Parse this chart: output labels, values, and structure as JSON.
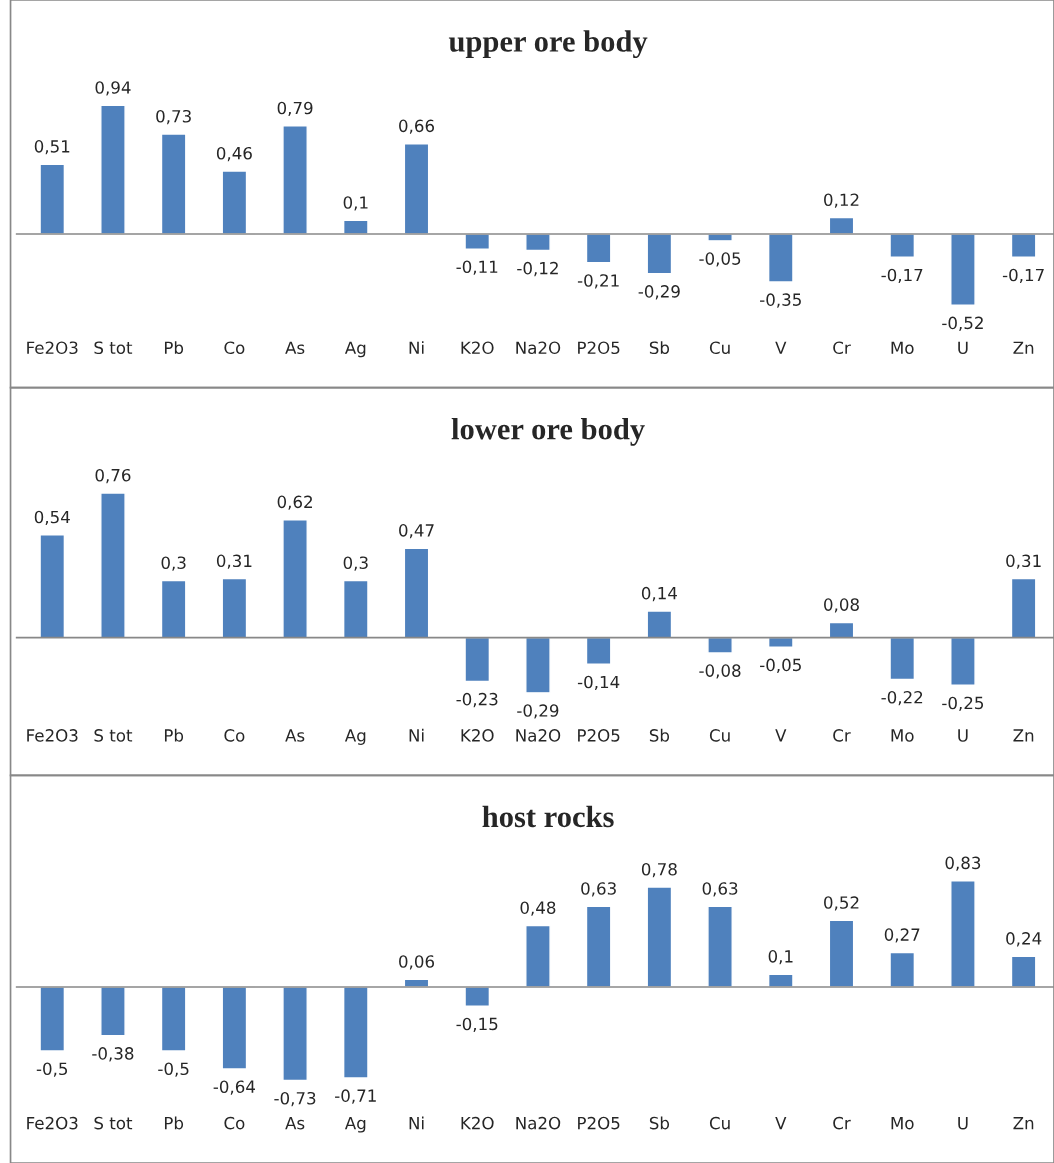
{
  "chart_data": [
    {
      "type": "bar",
      "title": "upper ore body",
      "categories": [
        "Fe2O3",
        "S tot",
        "Pb",
        "Co",
        "As",
        "Ag",
        "Ni",
        "K2O",
        "Na2O",
        "P2O5",
        "Sb",
        "Cu",
        "V",
        "Cr",
        "Mo",
        "U",
        "Zn"
      ],
      "series": [
        {
          "color": "#4f81bd",
          "values": [
            0.51,
            0.94,
            0.73,
            0.46,
            0.79,
            0.1,
            0.66,
            -0.11,
            -0.12,
            -0.21,
            -0.29,
            -0.05,
            -0.35,
            0.12,
            -0.17,
            -0.52,
            -0.17
          ],
          "value_labels": [
            "0,51",
            "0,94",
            "0,73",
            "0,46",
            "0,79",
            "0,1",
            "0,66",
            "-0,11",
            "-0,12",
            "-0,21",
            "-0,29",
            "-0,05",
            "-0,35",
            "0,12",
            "-0,17",
            "-0,52",
            "-0,17"
          ]
        }
      ]
    },
    {
      "type": "bar",
      "title": "lower ore body",
      "categories": [
        "Fe2O3",
        "S tot",
        "Pb",
        "Co",
        "As",
        "Ag",
        "Ni",
        "K2O",
        "Na2O",
        "P2O5",
        "Sb",
        "Cu",
        "V",
        "Cr",
        "Mo",
        "U",
        "Zn"
      ],
      "series": [
        {
          "color": "#4f81bd",
          "values": [
            0.54,
            0.76,
            0.3,
            0.31,
            0.62,
            0.3,
            0.47,
            -0.23,
            -0.29,
            -0.14,
            0.14,
            -0.08,
            -0.05,
            0.08,
            -0.22,
            -0.25,
            0.31
          ],
          "value_labels": [
            "0,54",
            "0,76",
            "0,3",
            "0,31",
            "0,62",
            "0,3",
            "0,47",
            "-0,23",
            "-0,29",
            "-0,14",
            "0,14",
            "-0,08",
            "-0,05",
            "0,08",
            "-0,22",
            "-0,25",
            "0,31"
          ]
        }
      ]
    },
    {
      "type": "bar",
      "title": "host rocks",
      "categories": [
        "Fe2O3",
        "S tot",
        "Pb",
        "Co",
        "As",
        "Ag",
        "Ni",
        "K2O",
        "Na2O",
        "P2O5",
        "Sb",
        "Cu",
        "V",
        "Cr",
        "Mo",
        "U",
        "Zn"
      ],
      "series": [
        {
          "color": "#4f81bd",
          "values": [
            -0.5,
            -0.38,
            -0.5,
            -0.64,
            -0.73,
            -0.71,
            0.06,
            -0.15,
            0.48,
            0.63,
            0.78,
            0.63,
            0.1,
            0.52,
            0.27,
            0.83,
            0.24
          ],
          "value_labels": [
            "-0,5",
            "-0,38",
            "-0,5",
            "-0,64",
            "-0,73",
            "-0,71",
            "0,06",
            "-0,15",
            "0,48",
            "0,63",
            "0,78",
            "0,63",
            "0,1",
            "0,52",
            "0,27",
            "0,83",
            "0,24"
          ]
        }
      ]
    }
  ]
}
